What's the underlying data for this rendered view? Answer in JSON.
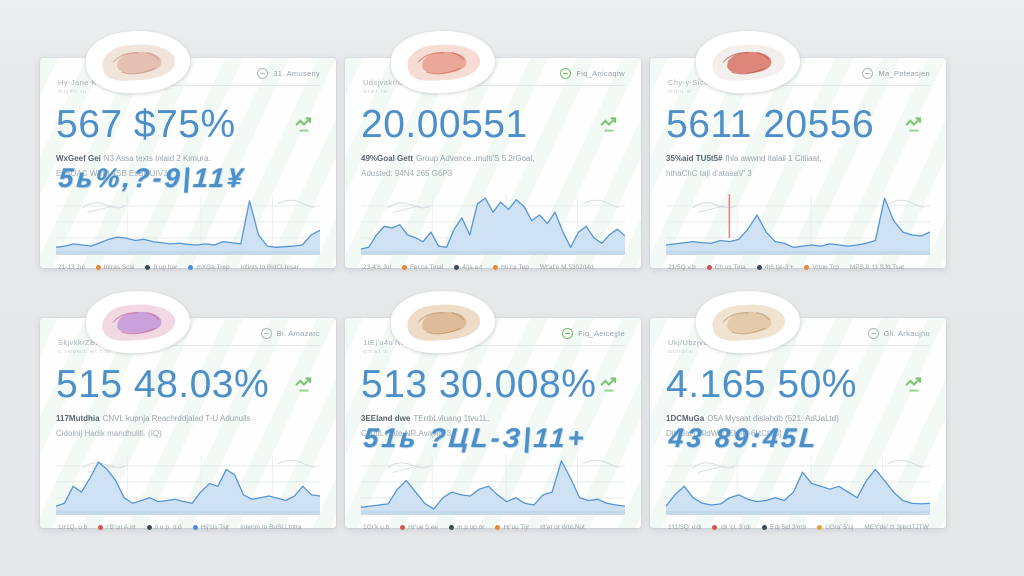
{
  "colors": {
    "accent_blue": "#4d8fc9",
    "area_fill": "#cfe2f4",
    "area_band": "#c2d8ee",
    "line": "#5795d2",
    "green": "#7cc576",
    "red_marker": "#e0837c"
  },
  "cards": [
    {
      "sticker_label": "Hy-Jane KUWF?",
      "sticker_sub": "mlymt ru",
      "sticker": {
        "c1": "#f1e4da",
        "c2": "#e3b7a8",
        "c3": "#c4907f"
      },
      "header": {
        "icon": "globe-icon",
        "icon_color": "#b2b8bd",
        "label": "31. Amuseny"
      },
      "stat": "567 $75%",
      "trend_color": "#7cc576",
      "sub_bold": "WxGeef Gei",
      "sub_rest": "N3 Assa texts Inlaid 2 Kimura.",
      "sub_line2": "EsSUAC WEM 4SB EsSQUIV3",
      "overlay": "5ь%,?-9|11¥",
      "chart": {
        "red_line": false,
        "values": [
          8,
          10,
          14,
          12,
          10,
          16,
          22,
          26,
          24,
          20,
          22,
          18,
          16,
          14,
          15,
          13,
          12,
          14,
          12,
          18,
          16,
          14,
          90,
          30,
          10,
          8,
          9,
          10,
          12,
          30,
          38
        ]
      },
      "legend": [
        {
          "label": "21-13 Jul"
        },
        {
          "dot": "#e8883a",
          "label": "Intras Scai"
        },
        {
          "dot": "#3f4a5a",
          "label": "8 up bar"
        },
        {
          "dot": "#4a90d9",
          "label": "mXGa Trep"
        },
        {
          "label": "Intints to BidCLhisar"
        }
      ]
    },
    {
      "sticker_label": "Udsjvakr/Burtrik",
      "sticker_sub": "wrwt tw",
      "sticker": {
        "c1": "#f6dcd4",
        "c2": "#e89a8a",
        "c3": "#cc6655"
      },
      "header": {
        "icon": "globe-icon",
        "icon_color": "#6fbf6a",
        "label": "Fiq_Anicaqtw"
      },
      "stat": "20.00551",
      "trend_color": "#7cc576",
      "sub_bold": "49%Goal Gett",
      "sub_rest": "Group Advance..multi'S 5.2rGoal,",
      "sub_line2": "Adusted: 94N4 265 G6P3",
      "overlay": "",
      "chart": {
        "red_line": false,
        "values": [
          5,
          8,
          30,
          45,
          42,
          48,
          30,
          25,
          18,
          35,
          10,
          8,
          40,
          60,
          30,
          85,
          95,
          70,
          88,
          75,
          92,
          80,
          55,
          65,
          50,
          70,
          35,
          8,
          35,
          45,
          25,
          15,
          30,
          40,
          28
        ]
      },
      "legend": [
        {
          "label": "23-4'6 Jul"
        },
        {
          "dot": "#e8883a",
          "label": "Fel.ca Tinal"
        },
        {
          "dot": "#3f4a5a",
          "label": "4/ja a-t"
        },
        {
          "dot": "#e8883a",
          "label": "hti.ca Tep"
        },
        {
          "label": "Wt'at'e M.5302/t4d"
        }
      ]
    },
    {
      "sticker_label": "Chy-y-SicBumps",
      "sticker_sub": "mthu w",
      "sticker": {
        "c1": "#f3efec",
        "c2": "#d96c5f",
        "c3": "#b9564a"
      },
      "header": {
        "icon": "globe-icon",
        "icon_color": "#b2b8bd",
        "label": "Ma_Peteasjen"
      },
      "stat": "5611 20556",
      "trend_color": "#7cc576",
      "sub_bold": "35%aid TU5t5#",
      "sub_rest": "fhla awwnd italail 1 Citiiaat,",
      "sub_line2": "hthaChC tajl d'ataaaV' 3",
      "overlay": "",
      "chart": {
        "red_line": true,
        "values": [
          12,
          14,
          16,
          18,
          16,
          15,
          20,
          18,
          22,
          40,
          65,
          35,
          18,
          15,
          8,
          10,
          12,
          10,
          14,
          12,
          10,
          12,
          15,
          20,
          95,
          55,
          35,
          30,
          28,
          35
        ]
      },
      "legend": [
        {
          "label": "21/5Q v.b"
        },
        {
          "dot": "#d9534f",
          "label": "Ch.us Tina"
        },
        {
          "dot": "#3f4a5a",
          "label": "4t6 tje-3'+"
        },
        {
          "dot": "#e8883a",
          "label": "Vrtoe Trp"
        },
        {
          "label": "MPSJL t3 SJtLTsat"
        }
      ]
    },
    {
      "sticker_label": "SkjvkkrZBtrwvr",
      "sticker_sub": "s swpwm wt t st",
      "sticker": {
        "c1": "#f2d8e2",
        "c2": "#bf93d9",
        "c3": "#c76a8e"
      },
      "header": {
        "icon": "globe-icon",
        "icon_color": "#b2b8bd",
        "label": "Bi. Amazarc"
      },
      "stat": "515 48.03%",
      "trend_color": "#7cc576",
      "sub_bold": "117Mutdhia",
      "sub_rest": "CNVL kupnja Reachrddjalad T-U Adunulls",
      "sub_line2": "Cidolnij Hadik mandhuliti. (IQ)",
      "overlay": "",
      "chart": {
        "red_line": false,
        "values": [
          10,
          15,
          45,
          35,
          60,
          88,
          75,
          55,
          25,
          15,
          20,
          25,
          18,
          20,
          22,
          18,
          15,
          35,
          50,
          45,
          75,
          65,
          30,
          22,
          25,
          28,
          24,
          20,
          28,
          45,
          30,
          28
        ]
      },
      "legend": [
        {
          "label": "1rr1Q. u.b"
        },
        {
          "dot": "#d9534f",
          "label": "r'B'un A.nt"
        },
        {
          "dot": "#3f4a5a",
          "label": "ó u.p. ó.ó"
        },
        {
          "dot": "#4a90d9",
          "label": "Hij'cis Tsjr"
        },
        {
          "label": "Interim Iu BuSLLtntra"
        }
      ]
    },
    {
      "sticker_label": "1tEj'u4u'/Wtwvwv",
      "sticker_sub": "wmwt w",
      "sticker": {
        "c1": "#efdcc8",
        "c2": "#d9b48f",
        "c3": "#b98f63"
      },
      "header": {
        "icon": "globe-icon",
        "icon_color": "#6fbf6a",
        "label": "Fiq_Aeicejjte"
      },
      "stat": "513 30.008%",
      "trend_color": "#7cc576",
      "sub_bold": "3EEland dwe",
      "sub_rest": "TErrbLvluang 1tvu1L.",
      "sub_line2": "CjtutiL Hate NR.Avajhat'3",
      "overlay": "51ь ?ЦL-З|11+",
      "chart": {
        "red_line": false,
        "values": [
          8,
          10,
          12,
          14,
          40,
          55,
          35,
          15,
          5,
          25,
          35,
          30,
          28,
          40,
          45,
          30,
          18,
          25,
          15,
          12,
          30,
          35,
          90,
          60,
          25,
          20,
          22,
          15,
          12,
          10
        ]
      },
      "legend": [
        {
          "label": "1Gr'k u.b"
        },
        {
          "dot": "#d9534f",
          "label": "Hr'ue 5.ee"
        },
        {
          "dot": "#3f4a5a",
          "label": "m.p op.or"
        },
        {
          "dot": "#e8883a",
          "label": "Hr'uu Tijr"
        },
        {
          "label": "rit'et ot WbLNut"
        }
      ]
    },
    {
      "sticker_label": "Ukj/UbzjvBwtrater",
      "sticker_sub": "wtmwtw",
      "sticker": {
        "c1": "#f0e3d0",
        "c2": "#dfc3a0",
        "c3": "#b99a70"
      },
      "header": {
        "icon": "globe-icon",
        "icon_color": "#b2b8bd",
        "label": "Gli. Arkaujnu"
      },
      "stat": "4.165 50%",
      "trend_color": "#7cc576",
      "sub_bold": "1DCMuGa",
      "sub_rest": "O5A Mysaat dislahdb (521. AdUaLtd)",
      "sub_line2": "DjtAJat'L 4IdW' DEM-R-6ljtCt'J3]",
      "overlay": "43 89:45L",
      "chart": {
        "red_line": false,
        "values": [
          10,
          30,
          45,
          25,
          15,
          12,
          14,
          25,
          30,
          22,
          18,
          20,
          25,
          20,
          35,
          70,
          50,
          45,
          40,
          45,
          35,
          25,
          55,
          75,
          55,
          35,
          20,
          15,
          14,
          15
        ]
      },
      "legend": [
        {
          "label": "1't1/5Q' v.di"
        },
        {
          "dot": "#d9534f",
          "label": "/di.'ci. 3'rdi"
        },
        {
          "dot": "#3f4a5a",
          "label": "5'dj 5jd 3'rrdi"
        },
        {
          "dot": "#e8a13a",
          "label": "UGta' 5'uj"
        },
        {
          "label": "MEY'de' t'l 3jibctTJTW"
        }
      ]
    }
  ]
}
